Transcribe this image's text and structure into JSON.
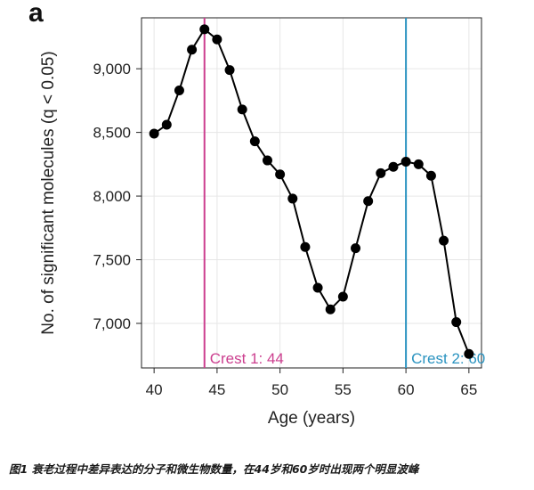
{
  "panel_label": "a",
  "caption": "图1 衰老过程中差异表达的分子和微生物数量，在44岁和60岁时出现两个明显波峰",
  "chart_data": {
    "type": "line",
    "title": "",
    "xlabel": "Age (years)",
    "ylabel": "No. of significant molecules (q < 0.05)",
    "xlim": [
      39,
      66
    ],
    "ylim": [
      6650,
      9400
    ],
    "grid": true,
    "x_ticks": [
      40,
      45,
      50,
      55,
      60,
      65
    ],
    "x_tick_labels": [
      "40",
      "45",
      "50",
      "55",
      "60",
      "65"
    ],
    "y_ticks": [
      7000,
      7500,
      8000,
      8500,
      9000
    ],
    "y_tick_labels": [
      "7,000",
      "7,500",
      "8,000",
      "8,500",
      "9,000"
    ],
    "series": [
      {
        "x": [
          40,
          41,
          42,
          43,
          44,
          45,
          46,
          47,
          48,
          49,
          50,
          51,
          52,
          53,
          54,
          55,
          56,
          57,
          58,
          59,
          60,
          61,
          62,
          63,
          64,
          65
        ],
        "values": [
          8490,
          8560,
          8830,
          9150,
          9310,
          9230,
          8990,
          8680,
          8430,
          8280,
          8170,
          7980,
          7600,
          7280,
          7110,
          7210,
          7590,
          7960,
          8180,
          8230,
          8270,
          8250,
          8160,
          7650,
          7010,
          6760
        ],
        "color": "#000000"
      }
    ],
    "annotations": [
      {
        "type": "vline",
        "x": 44,
        "label": "Crest 1: 44",
        "color": "#cc3f8f"
      },
      {
        "type": "vline",
        "x": 60,
        "label": "Crest 2: 60",
        "color": "#2a93c0"
      }
    ]
  }
}
